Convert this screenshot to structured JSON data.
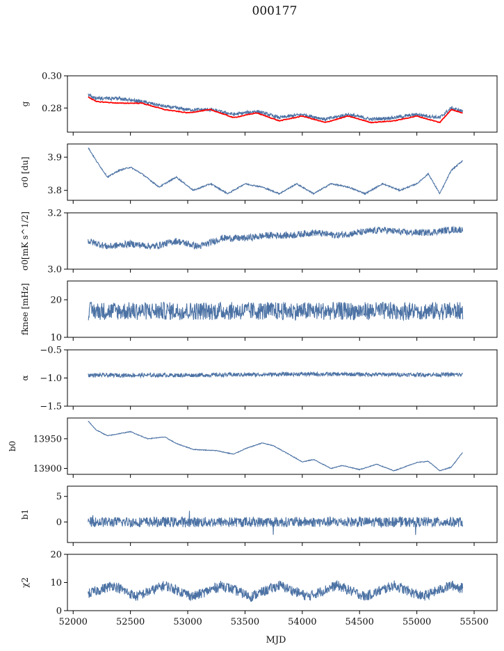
{
  "figure": {
    "title": "000177"
  },
  "colors": {
    "series": "#4c72a4",
    "model": "#ff0000",
    "axis": "#000000"
  },
  "chart_data": [
    {
      "type": "line",
      "ylabel": "g",
      "ylim": [
        0.265,
        0.3
      ],
      "yticks": [
        0.28,
        0.3
      ],
      "ytick_labels": [
        "0.28",
        "0.30"
      ],
      "x": [
        52130,
        52200,
        52400,
        52600,
        52800,
        53000,
        53200,
        53400,
        53600,
        53800,
        54000,
        54200,
        54400,
        54600,
        54800,
        55000,
        55200,
        55300,
        55400
      ],
      "series": [
        {
          "values": [
            0.288,
            0.286,
            0.286,
            0.284,
            0.281,
            0.279,
            0.279,
            0.276,
            0.278,
            0.274,
            0.276,
            0.273,
            0.276,
            0.273,
            0.274,
            0.276,
            0.274,
            0.28,
            0.278
          ]
        },
        {
          "color": "red",
          "values": [
            0.287,
            0.284,
            0.283,
            0.283,
            0.279,
            0.277,
            0.279,
            0.274,
            0.277,
            0.272,
            0.275,
            0.271,
            0.275,
            0.271,
            0.272,
            0.275,
            0.271,
            0.279,
            0.277
          ]
        }
      ]
    },
    {
      "type": "line",
      "ylabel": "σ0 [du]",
      "ylim": [
        3.77,
        3.94
      ],
      "yticks": [
        3.8,
        3.9
      ],
      "ytick_labels": [
        "3.8",
        "3.9"
      ],
      "x": [
        52130,
        52200,
        52300,
        52400,
        52500,
        52600,
        52750,
        52900,
        53050,
        53200,
        53350,
        53500,
        53650,
        53800,
        53950,
        54100,
        54250,
        54400,
        54550,
        54700,
        54850,
        55000,
        55100,
        55200,
        55300,
        55400
      ],
      "series": [
        {
          "values": [
            3.93,
            3.89,
            3.84,
            3.86,
            3.87,
            3.85,
            3.81,
            3.84,
            3.8,
            3.82,
            3.79,
            3.82,
            3.81,
            3.79,
            3.82,
            3.79,
            3.82,
            3.81,
            3.79,
            3.82,
            3.8,
            3.82,
            3.85,
            3.79,
            3.86,
            3.89
          ]
        }
      ]
    },
    {
      "type": "line",
      "ylabel": "σ0[mK s^1/2]",
      "ylim": [
        3.0,
        3.2
      ],
      "yticks": [
        3.0,
        3.2
      ],
      "ytick_labels": [
        "3.0",
        "3.2"
      ],
      "x": [
        52130,
        52300,
        52500,
        52700,
        52900,
        53100,
        53300,
        53500,
        53700,
        53900,
        54100,
        54300,
        54500,
        54700,
        54900,
        55100,
        55300,
        55400
      ],
      "series": [
        {
          "values": [
            3.1,
            3.08,
            3.09,
            3.08,
            3.1,
            3.08,
            3.11,
            3.11,
            3.12,
            3.12,
            3.13,
            3.12,
            3.13,
            3.14,
            3.13,
            3.13,
            3.14,
            3.14
          ]
        }
      ]
    },
    {
      "type": "line",
      "ylabel": "fknee [mHz]",
      "ylim": [
        10,
        25
      ],
      "yticks": [
        10,
        20
      ],
      "ytick_labels": [
        "10",
        "20"
      ],
      "x": [
        52130,
        53000,
        54000,
        55000,
        55400
      ],
      "series": [
        {
          "values": [
            17,
            17,
            17,
            17,
            17
          ]
        }
      ]
    },
    {
      "type": "line",
      "ylabel": "α",
      "ylim": [
        -1.5,
        -0.5
      ],
      "yticks": [
        -1.5,
        -1.0,
        -0.5
      ],
      "ytick_labels": [
        "−1.5",
        "−1.0",
        "−0.5"
      ],
      "x": [
        52130,
        53000,
        54000,
        55000,
        55400
      ],
      "series": [
        {
          "values": [
            -0.95,
            -0.95,
            -0.93,
            -0.94,
            -0.94
          ]
        }
      ]
    },
    {
      "type": "line",
      "ylabel": "b0",
      "ylim": [
        13890,
        13985
      ],
      "yticks": [
        13900,
        13950
      ],
      "ytick_labels": [
        "13900",
        "13950"
      ],
      "x": [
        52130,
        52200,
        52300,
        52500,
        52650,
        52800,
        52900,
        53050,
        53250,
        53400,
        53500,
        53650,
        53750,
        53900,
        54000,
        54100,
        54250,
        54350,
        54500,
        54650,
        54800,
        55000,
        55100,
        55200,
        55300,
        55400
      ],
      "series": [
        {
          "values": [
            13980,
            13965,
            13955,
            13962,
            13950,
            13953,
            13942,
            13932,
            13930,
            13924,
            13933,
            13943,
            13938,
            13922,
            13911,
            13915,
            13900,
            13905,
            13898,
            13907,
            13896,
            13910,
            13912,
            13896,
            13902,
            13927
          ]
        }
      ]
    },
    {
      "type": "line",
      "ylabel": "b1",
      "ylim": [
        -4,
        7
      ],
      "yticks": [
        0,
        5
      ],
      "ytick_labels": [
        "0",
        "5"
      ],
      "x": [
        52130,
        53000,
        54000,
        55000,
        55400
      ],
      "series": [
        {
          "values": [
            0,
            0,
            0,
            0,
            0
          ]
        }
      ]
    },
    {
      "type": "line",
      "ylabel": "χ2",
      "ylim": [
        0,
        20
      ],
      "yticks": [
        0,
        10,
        20
      ],
      "ytick_labels": [
        "0",
        "10",
        "20"
      ],
      "x": [
        52130,
        52350,
        52550,
        52800,
        53050,
        53300,
        53550,
        53800,
        54050,
        54300,
        54550,
        54800,
        55050,
        55300,
        55400
      ],
      "series": [
        {
          "values": [
            6,
            9,
            5,
            9,
            5,
            9,
            5,
            9,
            5,
            9,
            5,
            9,
            5,
            9,
            8
          ]
        }
      ],
      "xlabel": "MJD",
      "xlim": [
        51950,
        55700
      ],
      "xticks": [
        52000,
        52500,
        53000,
        53500,
        54000,
        54500,
        55000,
        55500
      ],
      "xtick_labels": [
        "52000",
        "52500",
        "53000",
        "53500",
        "54000",
        "54500",
        "55000",
        "55500"
      ]
    }
  ]
}
